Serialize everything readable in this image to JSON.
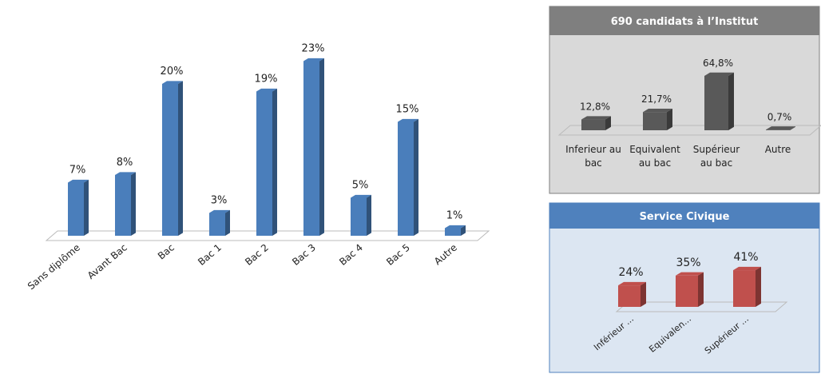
{
  "chart_data": [
    {
      "type": "bar",
      "categories": [
        "Sans diplôme",
        "Avant Bac",
        "Bac",
        "Bac 1",
        "Bac 2",
        "Bac 3",
        "Bac 4",
        "Bac 5",
        "Autre"
      ],
      "values": [
        7,
        8,
        20,
        3,
        19,
        23,
        5,
        15,
        1
      ],
      "value_labels": [
        "7%",
        "8%",
        "20%",
        "3%",
        "19%",
        "23%",
        "5%",
        "15%",
        "1%"
      ],
      "color": "#4a7ebb"
    },
    {
      "type": "bar",
      "title": "690 candidats à l’Institut",
      "categories": [
        "Inferieur au bac",
        "Equivalent au bac",
        "Supérieur au bac",
        "Autre"
      ],
      "values": [
        12.8,
        21.7,
        64.8,
        0.7
      ],
      "value_labels": [
        "12,8%",
        "21,7%",
        "64,8%",
        "0,7%"
      ],
      "color": "#595959"
    },
    {
      "type": "bar",
      "title": "Service Civique",
      "categories": [
        "Inférieur ...",
        "Equivalen...",
        "Supérieur ..."
      ],
      "values": [
        24,
        35,
        41
      ],
      "value_labels": [
        "24%",
        "35%",
        "41%"
      ],
      "color": "#c0504d"
    }
  ]
}
